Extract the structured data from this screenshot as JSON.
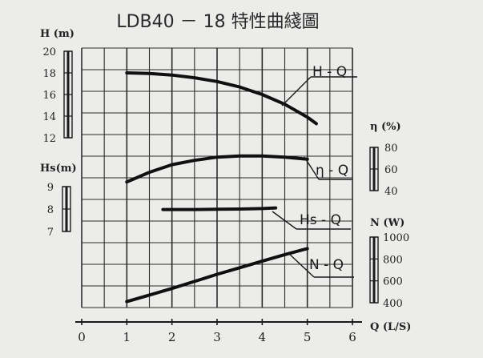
{
  "chart_data": {
    "type": "line",
    "title": "LDB40 － 18 特性曲綫圖",
    "x": {
      "label": "Q  (L/S)",
      "range": [
        0,
        6
      ],
      "ticks": [
        "0",
        "1",
        "2",
        "3",
        "4",
        "5",
        "6"
      ]
    },
    "axes": {
      "H": {
        "label": "H  (m)",
        "range": [
          12,
          20
        ],
        "ticks": [
          "20",
          "18",
          "16",
          "14",
          "12"
        ]
      },
      "Hs": {
        "label": "Hs(m)",
        "range": [
          7,
          9
        ],
        "ticks": [
          "9",
          "8",
          "7"
        ]
      },
      "eta": {
        "label": "η  (%)",
        "range": [
          40,
          80
        ],
        "ticks": [
          "80",
          "60",
          "40"
        ]
      },
      "N": {
        "label": "N  (W)",
        "range": [
          400,
          1000
        ],
        "ticks": [
          "1000",
          "800",
          "600",
          "400"
        ]
      }
    },
    "series": [
      {
        "name": "H - Q",
        "axis": "H",
        "x": [
          1.0,
          1.5,
          2.0,
          2.5,
          3.0,
          3.5,
          4.0,
          4.5,
          5.0,
          5.2
        ],
        "y": [
          18.0,
          17.95,
          17.8,
          17.55,
          17.2,
          16.7,
          16.0,
          15.1,
          13.9,
          13.3
        ]
      },
      {
        "name": "η - Q",
        "axis": "eta",
        "x": [
          1.0,
          1.5,
          2.0,
          2.5,
          3.0,
          3.5,
          4.0,
          4.5,
          5.0
        ],
        "y": [
          48,
          57,
          64,
          68,
          71,
          72,
          72,
          71,
          69
        ]
      },
      {
        "name": "Hs - Q",
        "axis": "Hs",
        "x": [
          1.8,
          2.5,
          3.0,
          3.5,
          4.0,
          4.3
        ],
        "y": [
          7.98,
          7.98,
          7.99,
          8.0,
          8.02,
          8.05
        ]
      },
      {
        "name": "N - Q",
        "axis": "N",
        "x": [
          1.0,
          1.5,
          2.0,
          2.5,
          3.0,
          3.5,
          4.0,
          4.5,
          5.0
        ],
        "y": [
          410,
          470,
          530,
          595,
          660,
          720,
          780,
          840,
          895
        ]
      }
    ],
    "grid": true,
    "legend": "inline curve labels"
  }
}
